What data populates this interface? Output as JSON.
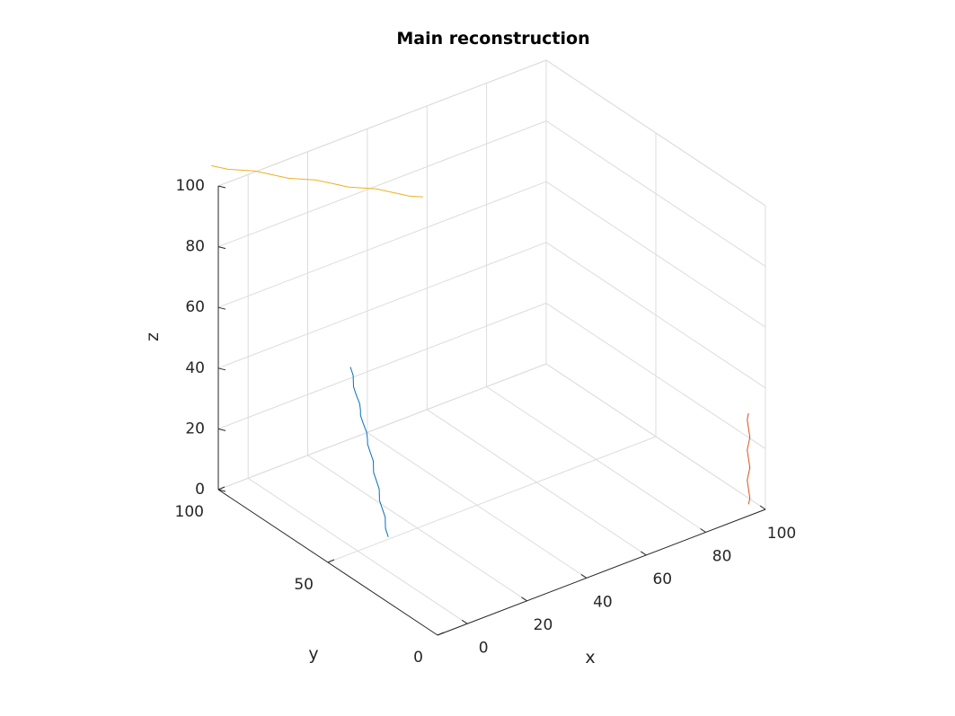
{
  "chart_data": {
    "type": "line3d",
    "title": "Main reconstruction",
    "xlabel": "x",
    "ylabel": "y",
    "zlabel": "z",
    "xlim": [
      -10,
      100
    ],
    "ylim": [
      0,
      100
    ],
    "zlim": [
      0,
      100
    ],
    "xticks": [
      0,
      20,
      40,
      60,
      80,
      100
    ],
    "yticks": [
      0,
      50,
      100
    ],
    "zticks": [
      0,
      20,
      40,
      60,
      80,
      100
    ],
    "grid": true,
    "series": [
      {
        "color": "#0072BD",
        "points": [
          [
            -1,
            52,
            60
          ],
          [
            0,
            52,
            55
          ],
          [
            1,
            52,
            50
          ],
          [
            2,
            51.5,
            45
          ],
          [
            3,
            51.5,
            40
          ],
          [
            4,
            51,
            35
          ],
          [
            5,
            51,
            30
          ],
          [
            6,
            51,
            25
          ],
          [
            7,
            51,
            20
          ],
          [
            8,
            51,
            15
          ],
          [
            9,
            51,
            10
          ],
          [
            10,
            51,
            5
          ],
          [
            11,
            51,
            0
          ]
        ]
      },
      {
        "color": "#D95319",
        "points": [
          [
            98,
            5,
            0
          ],
          [
            98,
            5,
            5
          ],
          [
            98,
            5,
            10
          ],
          [
            98,
            5,
            15
          ],
          [
            98,
            5,
            20
          ],
          [
            98,
            5,
            25
          ],
          [
            98,
            5,
            30
          ]
        ]
      },
      {
        "color": "#EDB120",
        "points": [
          [
            -5,
            110,
            100
          ],
          [
            0,
            103,
            100
          ],
          [
            5,
            96,
            100
          ],
          [
            10,
            89,
            100
          ],
          [
            15,
            82,
            100
          ],
          [
            20,
            75,
            100
          ],
          [
            25,
            68,
            100
          ],
          [
            30,
            61,
            100
          ]
        ]
      }
    ]
  }
}
